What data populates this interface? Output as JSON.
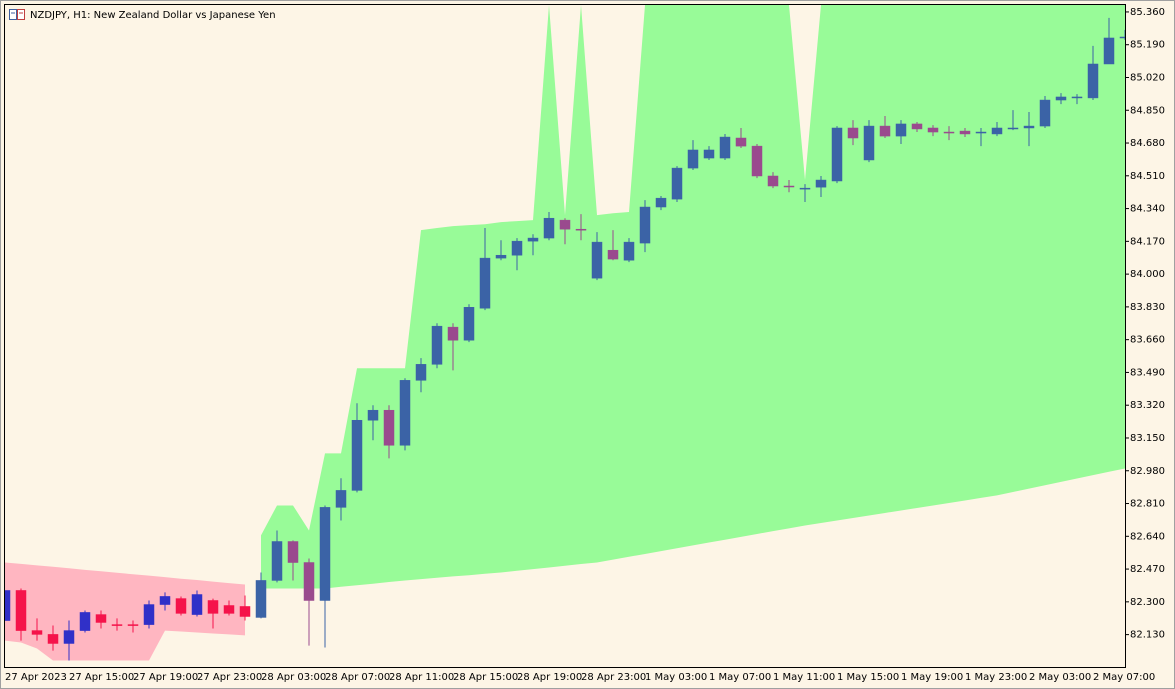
{
  "chart_data": {
    "type": "candlestick",
    "title": "NZDJPY, H1:  New Zealand Dollar vs Japanese Yen",
    "background": "#fdf5e6",
    "categories": [
      "27 Apr 2023",
      null,
      null,
      null,
      "27 Apr 15:00",
      null,
      null,
      null,
      "27 Apr 19:00",
      null,
      null,
      null,
      "27 Apr 23:00",
      null,
      null,
      null,
      "28 Apr 03:00",
      null,
      null,
      null,
      "28 Apr 07:00",
      null,
      null,
      null,
      "28 Apr 11:00",
      null,
      null,
      null,
      "28 Apr 15:00",
      null,
      null,
      null,
      "28 Apr 19:00",
      null,
      null,
      null,
      "28 Apr 23:00",
      null,
      null,
      null,
      "1 May 03:00",
      null,
      null,
      null,
      "1 May 07:00",
      null,
      null,
      null,
      "1 May 11:00",
      null,
      null,
      null,
      "1 May 15:00",
      null,
      null,
      null,
      "1 May 19:00",
      null,
      null,
      null,
      "1 May 23:00",
      null,
      null,
      null,
      "2 May 03:00",
      null,
      null,
      null,
      "2 May 07:00",
      null,
      null
    ],
    "open": [
      82.203,
      82.359,
      82.151,
      82.131,
      82.084,
      82.151,
      82.234,
      82.182,
      82.182,
      82.182,
      82.286,
      82.317,
      82.234,
      82.307,
      82.281,
      82.276,
      82.219,
      82.411,
      82.613,
      82.504,
      82.307,
      82.79,
      82.878,
      83.242,
      83.294,
      83.112,
      83.449,
      83.532,
      83.725,
      83.657,
      83.823,
      84.083,
      84.098,
      84.171,
      84.187,
      84.28,
      84.233,
      83.979,
      84.124,
      84.072,
      84.161,
      84.348,
      84.389,
      84.55,
      84.602,
      84.602,
      84.706,
      84.664,
      84.509,
      84.457,
      84.446,
      84.451,
      84.483,
      84.758,
      84.592,
      84.768,
      84.716,
      84.779,
      84.758,
      84.737,
      84.742,
      84.737,
      84.727,
      84.758,
      84.758,
      84.768,
      84.903,
      84.919,
      84.914,
      85.09,
      85.225
    ],
    "high": [
      82.359,
      82.369,
      82.214,
      82.177,
      82.203,
      82.255,
      82.255,
      82.214,
      82.203,
      82.307,
      82.349,
      82.328,
      82.359,
      82.317,
      82.307,
      82.333,
      82.452,
      82.67,
      82.619,
      82.525,
      82.8,
      82.941,
      83.33,
      83.32,
      83.32,
      83.46,
      83.564,
      83.745,
      83.745,
      83.844,
      84.239,
      84.176,
      84.187,
      84.207,
      84.322,
      84.29,
      84.311,
      84.218,
      84.228,
      84.187,
      84.384,
      84.405,
      84.56,
      84.695,
      84.664,
      84.727,
      84.758,
      84.675,
      84.529,
      84.488,
      84.467,
      84.509,
      84.768,
      84.799,
      84.799,
      84.82,
      84.799,
      84.789,
      84.773,
      84.768,
      84.758,
      84.758,
      84.789,
      84.851,
      84.841,
      84.924,
      84.939,
      84.934,
      85.184,
      85.329,
      85.267
    ],
    "low": [
      82.203,
      82.099,
      82.099,
      82.047,
      81.996,
      82.141,
      82.162,
      82.151,
      82.141,
      82.162,
      82.255,
      82.229,
      82.224,
      82.162,
      82.229,
      82.203,
      82.214,
      82.401,
      82.411,
      82.073,
      82.063,
      82.722,
      82.868,
      83.138,
      83.044,
      83.086,
      83.387,
      83.512,
      83.501,
      83.647,
      83.813,
      84.072,
      84.02,
      84.098,
      84.176,
      84.155,
      84.176,
      83.969,
      84.072,
      84.062,
      84.114,
      84.332,
      84.374,
      84.54,
      84.592,
      84.592,
      84.654,
      84.498,
      84.446,
      84.425,
      84.374,
      84.4,
      84.472,
      84.669,
      84.581,
      84.706,
      84.675,
      84.737,
      84.716,
      84.695,
      84.711,
      84.664,
      84.716,
      84.747,
      84.664,
      84.758,
      84.882,
      84.882,
      84.903,
      85.09,
      85.215
    ],
    "close": [
      82.359,
      82.151,
      82.131,
      82.084,
      82.151,
      82.245,
      82.193,
      82.182,
      82.182,
      82.286,
      82.328,
      82.24,
      82.338,
      82.24,
      82.24,
      82.224,
      82.411,
      82.613,
      82.504,
      82.307,
      82.79,
      82.878,
      83.242,
      83.294,
      83.112,
      83.449,
      83.532,
      83.73,
      83.657,
      83.828,
      84.083,
      84.098,
      84.171,
      84.187,
      84.29,
      84.233,
      84.233,
      84.166,
      84.078,
      84.166,
      84.348,
      84.394,
      84.55,
      84.644,
      84.644,
      84.711,
      84.664,
      84.509,
      84.457,
      84.457,
      84.446,
      84.488,
      84.758,
      84.706,
      84.768,
      84.716,
      84.779,
      84.753,
      84.737,
      84.737,
      84.727,
      84.737,
      84.758,
      84.758,
      84.768,
      84.903,
      84.919,
      84.919,
      85.09,
      85.225,
      85.23
    ],
    "colors": [
      "#3030c8",
      "#f5134a",
      "#f5134a",
      "#f5134a",
      "#3030c8",
      "#3030c8",
      "#f5134a",
      "#f5134a",
      "#f5134a",
      "#3030c8",
      "#3030c8",
      "#f5134a",
      "#3030c8",
      "#f5134a",
      "#f5134a",
      "#f5134a",
      "#3b63a6",
      "#3b63a6",
      "#9a4a8e",
      "#9a4a8e",
      "#3b63a6",
      "#3b63a6",
      "#3b63a6",
      "#3b63a6",
      "#9a4a8e",
      "#3b63a6",
      "#3b63a6",
      "#3b63a6",
      "#9a4a8e",
      "#3b63a6",
      "#3b63a6",
      "#3b63a6",
      "#3b63a6",
      "#3b63a6",
      "#3b63a6",
      "#9a4a8e",
      "#9a4a8e",
      "#3b63a6",
      "#9a4a8e",
      "#3b63a6",
      "#3b63a6",
      "#3b63a6",
      "#3b63a6",
      "#3b63a6",
      "#3b63a6",
      "#3b63a6",
      "#9a4a8e",
      "#9a4a8e",
      "#9a4a8e",
      "#9a4a8e",
      "#3b63a6",
      "#3b63a6",
      "#3b63a6",
      "#9a4a8e",
      "#3b63a6",
      "#9a4a8e",
      "#3b63a6",
      "#9a4a8e",
      "#9a4a8e",
      "#9a4a8e",
      "#9a4a8e",
      "#3b63a6",
      "#3b63a6",
      "#3b63a6",
      "#3b63a6",
      "#3b63a6",
      "#3b63a6",
      "#3b63a6",
      "#3b63a6",
      "#3b63a6",
      "#3b63a6"
    ],
    "bands": [
      {
        "color": "#98fb98",
        "upper": [
          null,
          null,
          null,
          null,
          null,
          null,
          null,
          null,
          null,
          null,
          null,
          null,
          null,
          null,
          null,
          null,
          82.645,
          82.8,
          82.8,
          82.67,
          83.07,
          83.07,
          83.512,
          83.512,
          83.512,
          83.512,
          84.228,
          84.239,
          84.249,
          84.254,
          84.259,
          84.27,
          84.275,
          84.28,
          85.396,
          84.306,
          85.396,
          84.306,
          84.316,
          84.322,
          85.396,
          85.396,
          85.396,
          85.396,
          85.396,
          85.396,
          85.396,
          85.396,
          85.396,
          85.396,
          84.488,
          85.396,
          85.396,
          85.396,
          85.396,
          85.396,
          85.396,
          85.396,
          85.396,
          85.396,
          85.396,
          85.396,
          85.396,
          85.396,
          85.396,
          85.396,
          85.396,
          85.396,
          85.396,
          85.396,
          85.396
        ],
        "lower": [
          null,
          null,
          null,
          null,
          null,
          null,
          null,
          null,
          null,
          null,
          null,
          null,
          null,
          null,
          null,
          null,
          82.369,
          82.369,
          82.369,
          82.369,
          82.369,
          82.378,
          82.386,
          82.394,
          82.403,
          82.411,
          82.418,
          82.425,
          82.432,
          82.438,
          82.446,
          82.452,
          82.461,
          82.47,
          82.478,
          82.487,
          82.496,
          82.504,
          82.519,
          82.534,
          82.548,
          82.563,
          82.578,
          82.593,
          82.608,
          82.622,
          82.637,
          82.652,
          82.667,
          82.681,
          82.696,
          82.709,
          82.722,
          82.735,
          82.748,
          82.761,
          82.774,
          82.787,
          82.8,
          82.813,
          82.826,
          82.839,
          82.852,
          82.87,
          82.887,
          82.905,
          82.922,
          82.94,
          82.957,
          82.975,
          82.992
        ]
      },
      {
        "color": "#ffb6c1",
        "upper": [
          82.504,
          82.497,
          82.489,
          82.482,
          82.474,
          82.466,
          82.459,
          82.451,
          82.443,
          82.436,
          82.428,
          82.42,
          82.413,
          82.405,
          82.397,
          82.39,
          null,
          null,
          null,
          null,
          null,
          null,
          null,
          null,
          null,
          null,
          null,
          null,
          null,
          null,
          null,
          null,
          null,
          null,
          null,
          null,
          null,
          null,
          null,
          null,
          null,
          null,
          null,
          null,
          null,
          null,
          null,
          null,
          null,
          null,
          null,
          null,
          null,
          null,
          null,
          null,
          null,
          null,
          null,
          null,
          null,
          null,
          null,
          null,
          null,
          null,
          null,
          null,
          null,
          null,
          null
        ],
        "lower": [
          82.099,
          82.089,
          82.058,
          81.996,
          81.996,
          81.996,
          81.996,
          81.996,
          81.996,
          81.996,
          82.151,
          82.146,
          82.141,
          82.136,
          82.131,
          82.126,
          null,
          null,
          null,
          null,
          null,
          null,
          null,
          null,
          null,
          null,
          null,
          null,
          null,
          null,
          null,
          null,
          null,
          null,
          null,
          null,
          null,
          null,
          null,
          null,
          null,
          null,
          null,
          null,
          null,
          null,
          null,
          null,
          null,
          null,
          null,
          null,
          null,
          null,
          null,
          null,
          null,
          null,
          null,
          null,
          null,
          null,
          null,
          null,
          null,
          null,
          null,
          null,
          null,
          null,
          null
        ]
      }
    ],
    "ylim": [
      81.962,
      85.396
    ],
    "yticks": [
      {
        "value": 85.36,
        "label": "85.360"
      },
      {
        "value": 85.19,
        "label": "85.190"
      },
      {
        "value": 85.02,
        "label": "85.020"
      },
      {
        "value": 84.85,
        "label": "84.850"
      },
      {
        "value": 84.68,
        "label": "84.680"
      },
      {
        "value": 84.51,
        "label": "84.510"
      },
      {
        "value": 84.34,
        "label": "84.340"
      },
      {
        "value": 84.17,
        "label": "84.170"
      },
      {
        "value": 84,
        "label": "84.000"
      },
      {
        "value": 83.83,
        "label": "83.830"
      },
      {
        "value": 83.66,
        "label": "83.660"
      },
      {
        "value": 83.49,
        "label": "83.490"
      },
      {
        "value": 83.32,
        "label": "83.320"
      },
      {
        "value": 83.15,
        "label": "83.150"
      },
      {
        "value": 82.98,
        "label": "82.980"
      },
      {
        "value": 82.81,
        "label": "82.810"
      },
      {
        "value": 82.64,
        "label": "82.640"
      },
      {
        "value": 82.47,
        "label": "82.470"
      },
      {
        "value": 82.3,
        "label": "82.300"
      },
      {
        "value": 82.13,
        "label": "82.130"
      }
    ]
  }
}
